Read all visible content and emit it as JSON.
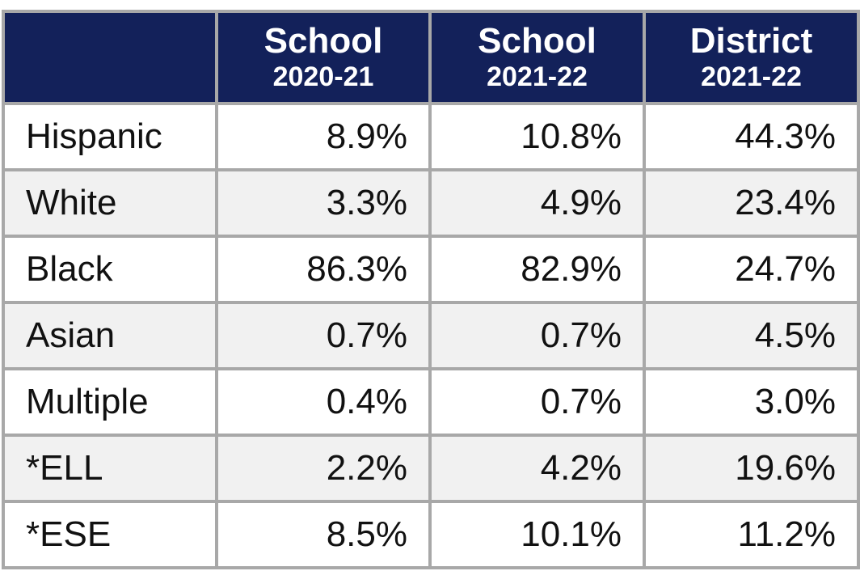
{
  "table": {
    "header": [
      null,
      {
        "top": "School",
        "bottom": "2020-21"
      },
      {
        "top": "School",
        "bottom": "2021-22"
      },
      {
        "top": "District",
        "bottom": "2021-22"
      }
    ],
    "rows": [
      [
        "Hispanic",
        "8.9%",
        "10.8%",
        "44.3%"
      ],
      [
        "White",
        "3.3%",
        "4.9%",
        "23.4%"
      ],
      [
        "Black",
        "86.3%",
        "82.9%",
        "24.7%"
      ],
      [
        "Asian",
        "0.7%",
        "0.7%",
        "4.5%"
      ],
      [
        "Multiple",
        "0.4%",
        "0.7%",
        "3.0%"
      ],
      [
        "*ELL",
        "2.2%",
        "4.2%",
        "19.6%"
      ],
      [
        "*ESE",
        "8.5%",
        "10.1%",
        "11.2%"
      ]
    ]
  }
}
